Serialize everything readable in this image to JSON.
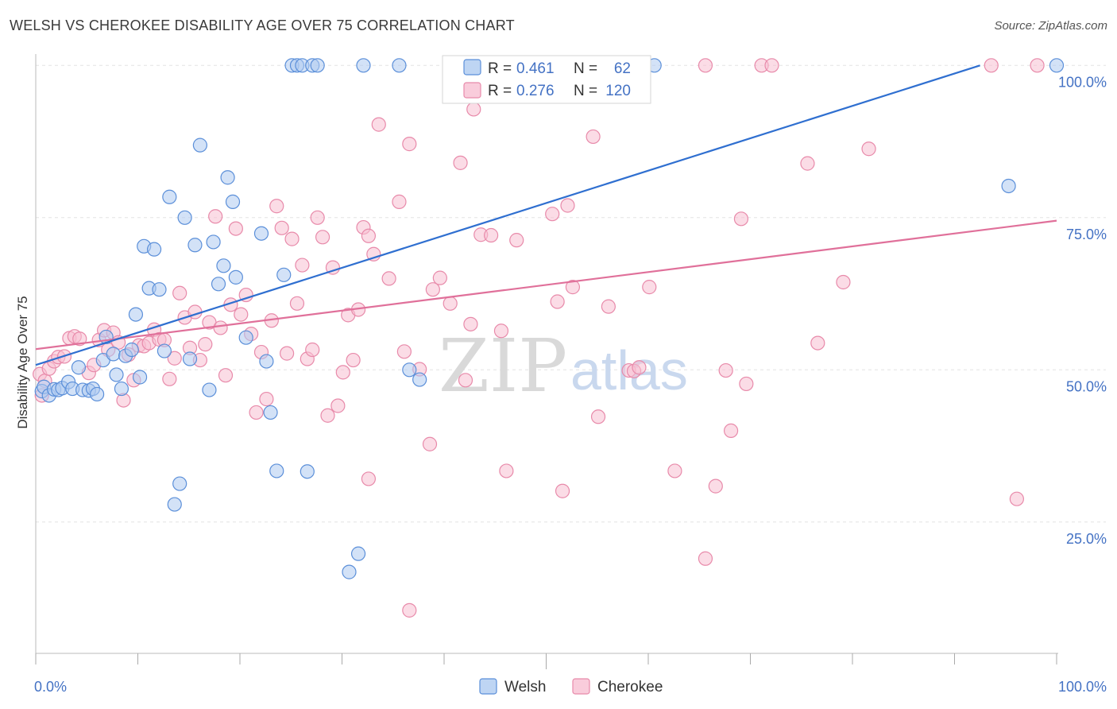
{
  "title": "WELSH VS CHEROKEE DISABILITY AGE OVER 75 CORRELATION CHART",
  "source": "Source: ZipAtlas.com",
  "watermark": {
    "zip": "ZIP",
    "atlas": "atlas"
  },
  "colors": {
    "welsh_fill": "#aecbf0",
    "welsh_stroke": "#5b8fd9",
    "welsh_line": "#2f6fd0",
    "cherokee_fill": "#f7bfd2",
    "cherokee_stroke": "#e88aaa",
    "cherokee_line": "#e0709a",
    "grid": "#e3e3e3",
    "tick_text": "#4472c4"
  },
  "stats_legend": [
    {
      "series": "Welsh",
      "r_label": "R =",
      "r_value": "0.461",
      "n_label": "N =",
      "n_value": "62"
    },
    {
      "series": "Cherokee",
      "r_label": "R =",
      "r_value": "0.276",
      "n_label": "N =",
      "n_value": "120"
    }
  ],
  "chart_data": {
    "type": "scatter",
    "ylabel": "Disability Age Over 75",
    "xlabel": "",
    "xlim": [
      0,
      100
    ],
    "ylim": [
      0,
      105
    ],
    "x_tick_labels": [
      {
        "v": 0,
        "label": "0.0%"
      },
      {
        "v": 100,
        "label": "100.0%"
      }
    ],
    "y_tick_labels": [
      {
        "v": 25,
        "label": "25.0%"
      },
      {
        "v": 50,
        "label": "50.0%"
      },
      {
        "v": 75,
        "label": "75.0%"
      },
      {
        "v": 100,
        "label": "100.0%"
      }
    ],
    "grid": true,
    "legend_position": "bottom-center",
    "series": [
      {
        "name": "Welsh",
        "trend": [
          [
            0,
            50.8
          ],
          [
            92.5,
            100.0
          ]
        ],
        "points": [
          [
            0.6,
            46.5
          ],
          [
            0.8,
            47.2
          ],
          [
            1.3,
            45.8
          ],
          [
            1.8,
            46.8
          ],
          [
            2.2,
            46.7
          ],
          [
            2.6,
            47.0
          ],
          [
            3.2,
            48.0
          ],
          [
            3.6,
            46.9
          ],
          [
            4.2,
            50.4
          ],
          [
            4.6,
            46.7
          ],
          [
            5.2,
            46.6
          ],
          [
            5.6,
            46.9
          ],
          [
            6.0,
            46.0
          ],
          [
            6.6,
            51.6
          ],
          [
            6.9,
            55.4
          ],
          [
            7.6,
            52.6
          ],
          [
            7.9,
            49.2
          ],
          [
            8.4,
            46.9
          ],
          [
            8.8,
            52.3
          ],
          [
            9.4,
            53.3
          ],
          [
            9.8,
            59.1
          ],
          [
            10.2,
            48.8
          ],
          [
            10.6,
            70.3
          ],
          [
            11.1,
            63.4
          ],
          [
            11.6,
            69.8
          ],
          [
            12.1,
            63.2
          ],
          [
            12.6,
            53.1
          ],
          [
            13.1,
            78.4
          ],
          [
            13.6,
            27.9
          ],
          [
            14.1,
            31.3
          ],
          [
            14.6,
            75.0
          ],
          [
            15.1,
            51.8
          ],
          [
            15.6,
            70.5
          ],
          [
            16.1,
            86.9
          ],
          [
            17.0,
            46.7
          ],
          [
            17.4,
            71.0
          ],
          [
            17.9,
            64.1
          ],
          [
            18.4,
            67.1
          ],
          [
            18.8,
            81.6
          ],
          [
            19.3,
            77.6
          ],
          [
            19.6,
            65.2
          ],
          [
            20.6,
            55.3
          ],
          [
            22.1,
            72.4
          ],
          [
            22.6,
            51.4
          ],
          [
            23.0,
            43.0
          ],
          [
            23.6,
            33.4
          ],
          [
            24.3,
            65.6
          ],
          [
            25.1,
            100
          ],
          [
            25.6,
            100
          ],
          [
            26.1,
            100
          ],
          [
            26.6,
            33.3
          ],
          [
            27.1,
            100
          ],
          [
            27.6,
            100
          ],
          [
            30.7,
            16.8
          ],
          [
            31.6,
            19.8
          ],
          [
            32.1,
            100
          ],
          [
            35.6,
            100
          ],
          [
            36.6,
            50.0
          ],
          [
            37.6,
            48.4
          ],
          [
            60.6,
            100
          ],
          [
            95.3,
            80.2
          ],
          [
            100.0,
            100
          ]
        ]
      },
      {
        "name": "Cherokee",
        "trend": [
          [
            0,
            53.4
          ],
          [
            100,
            74.5
          ]
        ],
        "points": [
          [
            0.4,
            49.3
          ],
          [
            0.6,
            45.8
          ],
          [
            0.9,
            48.2
          ],
          [
            1.3,
            50.2
          ],
          [
            1.8,
            51.4
          ],
          [
            2.2,
            52.1
          ],
          [
            2.8,
            52.2
          ],
          [
            3.3,
            55.2
          ],
          [
            3.8,
            55.5
          ],
          [
            4.3,
            55.1
          ],
          [
            5.2,
            49.5
          ],
          [
            5.7,
            50.8
          ],
          [
            6.2,
            54.9
          ],
          [
            6.7,
            56.5
          ],
          [
            7.1,
            53.3
          ],
          [
            7.6,
            56.1
          ],
          [
            8.1,
            54.5
          ],
          [
            8.6,
            45.0
          ],
          [
            9.1,
            52.5
          ],
          [
            9.6,
            48.3
          ],
          [
            10.1,
            54.0
          ],
          [
            10.6,
            53.9
          ],
          [
            11.1,
            54.4
          ],
          [
            11.6,
            56.6
          ],
          [
            12.1,
            55.0
          ],
          [
            12.6,
            54.9
          ],
          [
            13.1,
            48.5
          ],
          [
            13.6,
            51.9
          ],
          [
            14.1,
            62.6
          ],
          [
            14.6,
            58.6
          ],
          [
            15.1,
            53.6
          ],
          [
            15.6,
            59.5
          ],
          [
            16.1,
            51.6
          ],
          [
            16.6,
            54.2
          ],
          [
            17.0,
            57.8
          ],
          [
            17.6,
            75.2
          ],
          [
            18.1,
            56.9
          ],
          [
            18.6,
            49.1
          ],
          [
            19.1,
            60.7
          ],
          [
            19.6,
            73.2
          ],
          [
            20.1,
            59.1
          ],
          [
            20.6,
            62.3
          ],
          [
            21.1,
            55.9
          ],
          [
            21.6,
            43.0
          ],
          [
            22.1,
            52.9
          ],
          [
            22.6,
            45.2
          ],
          [
            23.1,
            58.1
          ],
          [
            23.6,
            76.9
          ],
          [
            24.1,
            73.3
          ],
          [
            24.6,
            52.7
          ],
          [
            25.1,
            71.5
          ],
          [
            25.6,
            60.9
          ],
          [
            26.1,
            67.2
          ],
          [
            26.6,
            51.8
          ],
          [
            27.1,
            53.3
          ],
          [
            27.6,
            75.0
          ],
          [
            28.1,
            71.8
          ],
          [
            28.6,
            42.5
          ],
          [
            29.1,
            66.8
          ],
          [
            29.6,
            44.1
          ],
          [
            30.1,
            49.6
          ],
          [
            30.6,
            59.0
          ],
          [
            31.1,
            51.6
          ],
          [
            31.6,
            59.9
          ],
          [
            32.1,
            73.4
          ],
          [
            32.6,
            32.1
          ],
          [
            32.6,
            72.0
          ],
          [
            33.1,
            69.0
          ],
          [
            33.6,
            90.3
          ],
          [
            34.6,
            65.0
          ],
          [
            35.6,
            77.6
          ],
          [
            36.1,
            53.0
          ],
          [
            36.6,
            10.5
          ],
          [
            36.6,
            87.1
          ],
          [
            37.6,
            50.1
          ],
          [
            38.6,
            37.8
          ],
          [
            38.9,
            63.2
          ],
          [
            39.6,
            65.1
          ],
          [
            40.6,
            60.9
          ],
          [
            41.1,
            99.8
          ],
          [
            41.6,
            84.0
          ],
          [
            42.1,
            48.3
          ],
          [
            42.6,
            57.5
          ],
          [
            42.9,
            92.8
          ],
          [
            43.6,
            72.2
          ],
          [
            44.6,
            72.1
          ],
          [
            45.6,
            56.4
          ],
          [
            45.6,
            99.8
          ],
          [
            46.1,
            33.4
          ],
          [
            47.1,
            71.3
          ],
          [
            50.6,
            75.6
          ],
          [
            51.1,
            61.2
          ],
          [
            51.6,
            30.1
          ],
          [
            52.1,
            77.0
          ],
          [
            52.6,
            63.6
          ],
          [
            54.1,
            100
          ],
          [
            54.6,
            88.3
          ],
          [
            55.1,
            42.3
          ],
          [
            56.1,
            60.4
          ],
          [
            58.1,
            49.9
          ],
          [
            58.6,
            49.8
          ],
          [
            59.1,
            50.4
          ],
          [
            60.1,
            63.6
          ],
          [
            62.6,
            33.4
          ],
          [
            65.6,
            19.0
          ],
          [
            65.6,
            100
          ],
          [
            66.6,
            30.9
          ],
          [
            67.6,
            49.9
          ],
          [
            68.1,
            40.0
          ],
          [
            69.1,
            74.8
          ],
          [
            69.6,
            47.7
          ],
          [
            71.1,
            100
          ],
          [
            72.1,
            100
          ],
          [
            75.6,
            83.9
          ],
          [
            76.6,
            54.4
          ],
          [
            79.1,
            64.4
          ],
          [
            81.6,
            86.3
          ],
          [
            93.6,
            100
          ],
          [
            96.1,
            28.8
          ],
          [
            98.1,
            100
          ]
        ]
      }
    ]
  }
}
